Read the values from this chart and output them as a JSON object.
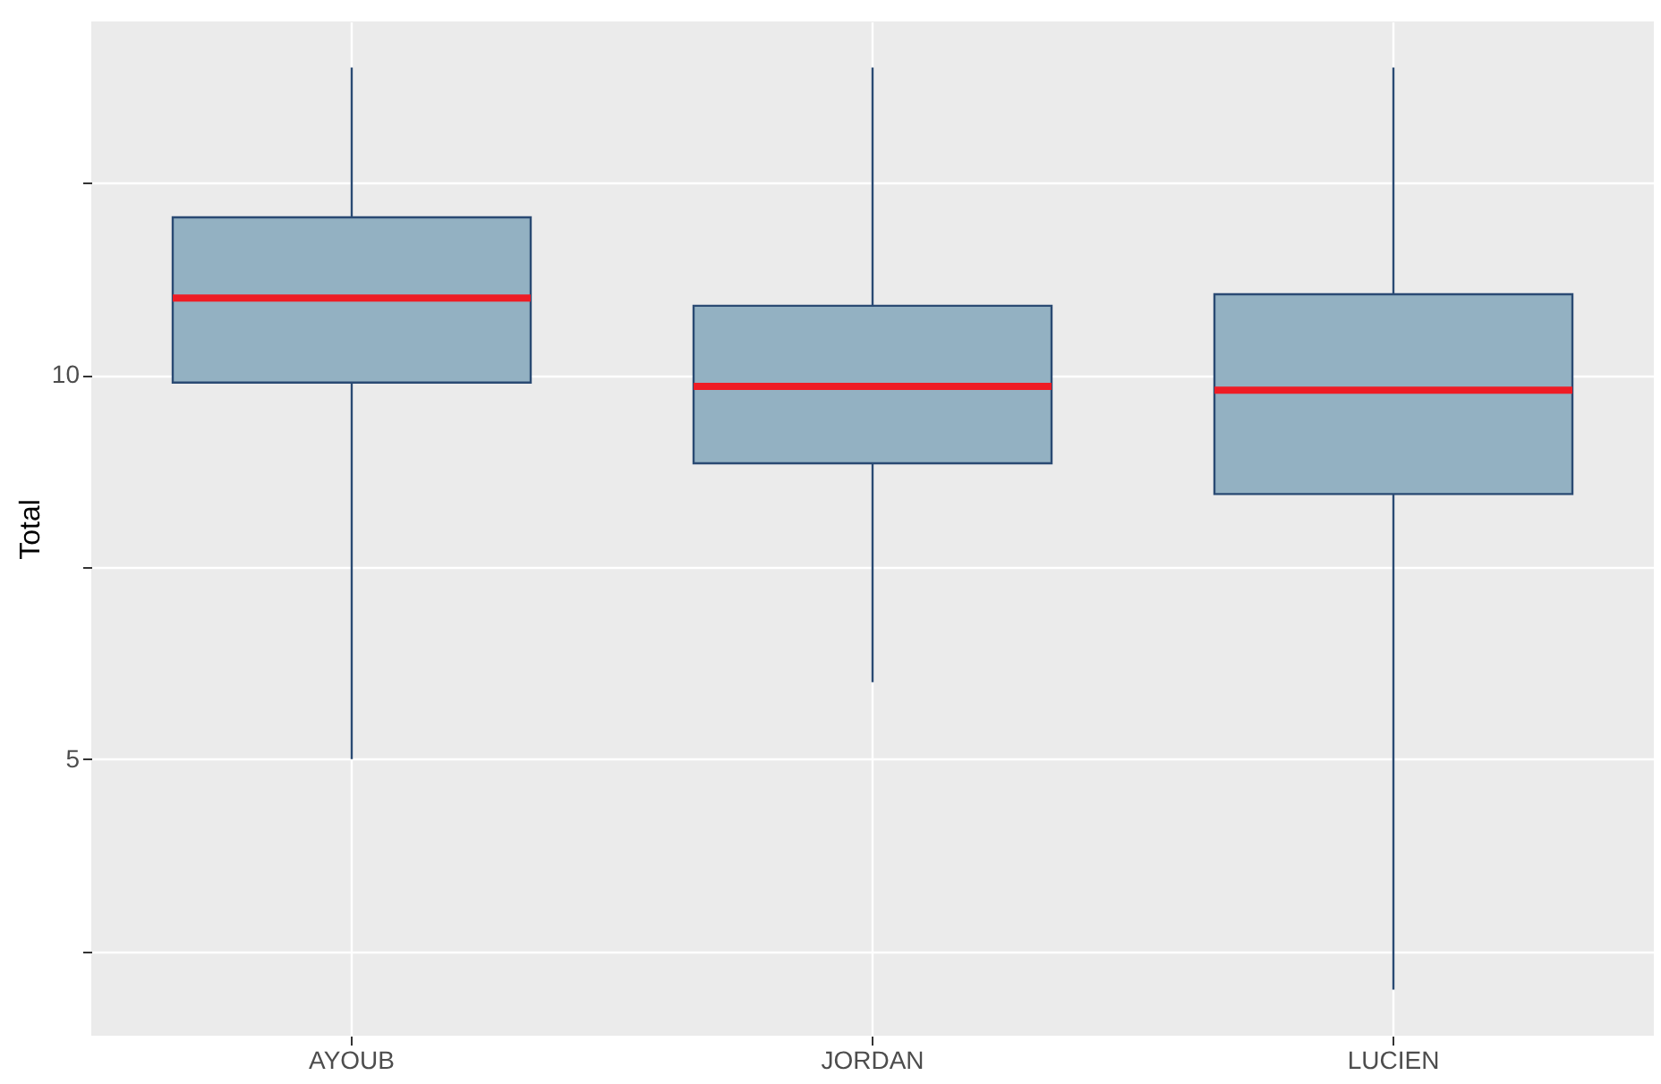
{
  "chart_data": {
    "type": "box",
    "ylabel": "Total",
    "categories": [
      "AYOUB",
      "JORDAN",
      "LUCIEN"
    ],
    "series": [
      {
        "color": "#93b1c2",
        "boxes": [
          {
            "low": 5,
            "q1": 9.9,
            "median": 11,
            "q3": 12.05,
            "high": 14
          },
          {
            "low": 6,
            "q1": 8.85,
            "median": 9.85,
            "q3": 10.9,
            "high": 14
          },
          {
            "low": 2,
            "q1": 8.45,
            "median": 9.8,
            "q3": 11.05,
            "high": 14
          }
        ]
      }
    ],
    "ylim": [
      1.4,
      14.6
    ],
    "yticks": [
      {
        "value": 2.5,
        "label": null
      },
      5,
      {
        "value": 7.5,
        "label": null
      },
      10,
      {
        "value": 12.5,
        "label": null
      }
    ],
    "grid": true
  }
}
